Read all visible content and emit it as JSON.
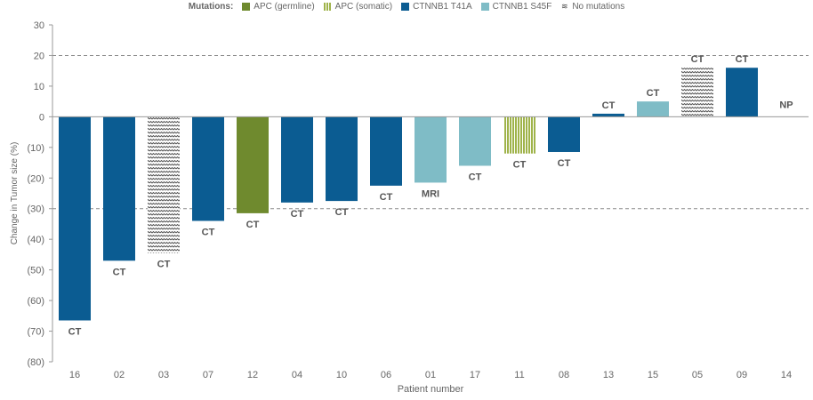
{
  "legend": {
    "title": "Mutations:",
    "items": [
      {
        "label": "APC (germline)",
        "key": "apc_germline"
      },
      {
        "label": "APC (somatic)",
        "key": "apc_somatic"
      },
      {
        "label": "CTNNB1 T41A",
        "key": "t41a"
      },
      {
        "label": "CTNNB1 S45F",
        "key": "s45f"
      },
      {
        "label": "No mutations",
        "key": "none",
        "glyph": "≋"
      }
    ]
  },
  "colors": {
    "apc_germline": "#6f8a2e",
    "apc_somatic": "#9fb34a",
    "t41a": "#0b5c92",
    "s45f": "#7fbcc6",
    "none": "#555555",
    "axis": "#999999",
    "text": "#666666"
  },
  "chart_data": {
    "type": "bar",
    "xlabel": "Patient number",
    "ylabel": "Change in Tumor size (%)",
    "ylim": [
      -80,
      30
    ],
    "yticks": [
      30,
      20,
      10,
      0,
      -10,
      -20,
      -30,
      -40,
      -50,
      -60,
      -70,
      -80
    ],
    "ytick_labels": [
      "30",
      "20",
      "10",
      "0",
      "(10)",
      "(20)",
      "(30)",
      "(40)",
      "(50)",
      "(60)",
      "(70)",
      "(80)"
    ],
    "reference_lines": [
      20,
      -30
    ],
    "categories": [
      "16",
      "02",
      "03",
      "07",
      "12",
      "04",
      "10",
      "06",
      "01",
      "17",
      "11",
      "08",
      "13",
      "15",
      "05",
      "09",
      "14"
    ],
    "values": [
      -66.5,
      -47,
      -44.5,
      -34,
      -31.5,
      -28,
      -27.5,
      -22.5,
      -21.5,
      -16,
      -12,
      -11.5,
      1,
      5,
      16,
      16,
      0
    ],
    "mutation": [
      "t41a",
      "t41a",
      "none",
      "t41a",
      "apc_germline",
      "t41a",
      "t41a",
      "t41a",
      "s45f",
      "s45f",
      "apc_somatic",
      "t41a",
      "t41a",
      "s45f",
      "none",
      "t41a",
      "t41a"
    ],
    "data_labels": [
      "CT",
      "CT",
      "CT",
      "CT",
      "CT",
      "CT",
      "CT",
      "CT",
      "MRI",
      "CT",
      "CT",
      "CT",
      "CT",
      "CT",
      "CT",
      "CT",
      "NP"
    ]
  }
}
